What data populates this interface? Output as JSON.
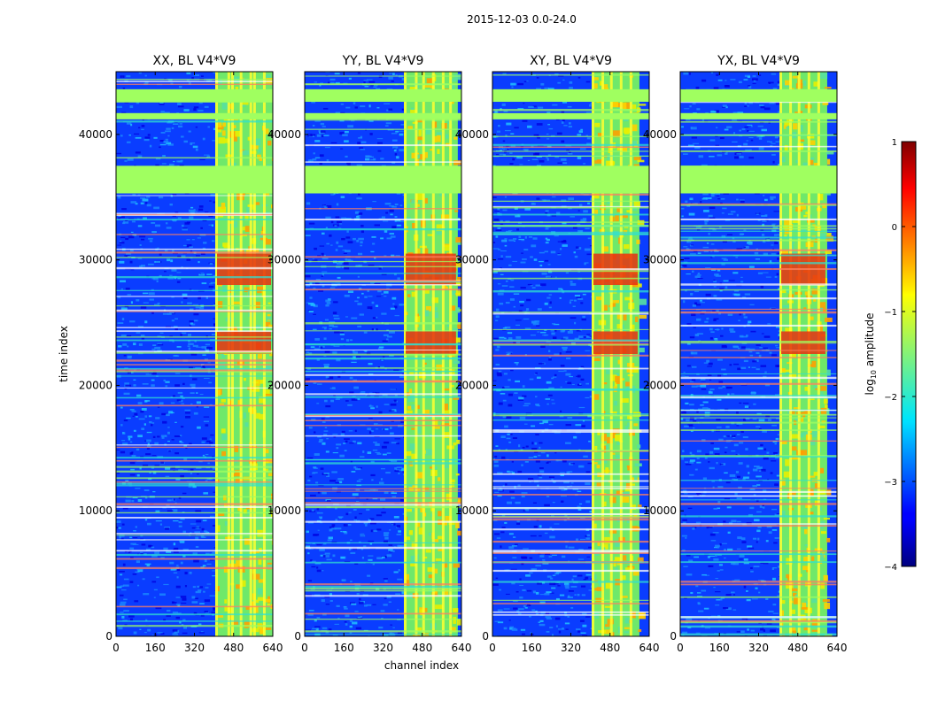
{
  "chart_data": {
    "type": "heatmap",
    "suptitle": "2015-12-03 0.0-24.0",
    "xlabel": "channel index",
    "ylabel": "time index",
    "xlim": [
      0,
      640
    ],
    "ylim": [
      0,
      45000
    ],
    "x_ticks": [
      "0",
      "160",
      "320",
      "480",
      "640"
    ],
    "y_ticks": [
      "0",
      "10000",
      "20000",
      "30000",
      "40000"
    ],
    "x_tick_values": [
      0,
      160,
      320,
      480,
      640
    ],
    "y_tick_values": [
      0,
      10000,
      20000,
      30000,
      40000
    ],
    "panels": [
      {
        "title": "XX, BL V4*V9",
        "band_start": 405,
        "band_end": 640,
        "band_bright_cols": [
          405,
          455,
          470,
          505,
          545,
          560,
          600
        ]
      },
      {
        "title": "YY, BL V4*V9",
        "band_start": 405,
        "band_end": 625,
        "band_bright_cols": [
          405,
          450,
          480,
          520,
          560,
          590
        ]
      },
      {
        "title": "XY, BL V4*V9",
        "band_start": 405,
        "band_end": 600,
        "band_bright_cols": [
          405,
          445,
          480,
          520,
          560
        ]
      },
      {
        "title": "YX, BL V4*V9",
        "band_start": 405,
        "band_end": 600,
        "band_bright_cols": [
          405,
          445,
          480,
          520,
          560
        ]
      }
    ],
    "colorbar": {
      "label": "log10 amplitude",
      "label_text": "log",
      "label_sub": "10",
      "label_rest": " amplitude",
      "range": [
        -4,
        1
      ],
      "ticks": [
        "1",
        "0",
        "−1",
        "−2",
        "−3",
        "−4"
      ],
      "tick_values": [
        1,
        0,
        -1,
        -2,
        -3,
        -4
      ],
      "colormap": "jet"
    },
    "flagged_time_ranges": [
      [
        35300,
        37500
      ],
      [
        42600,
        43600
      ],
      [
        41200,
        41700
      ]
    ],
    "high_amplitude_time_ranges": [
      [
        28000,
        30500
      ],
      [
        22500,
        24300
      ]
    ]
  }
}
